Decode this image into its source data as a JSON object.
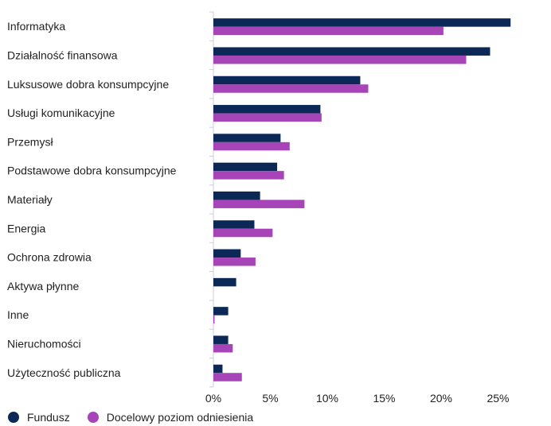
{
  "chart_data": {
    "type": "bar",
    "orientation": "horizontal",
    "categories": [
      "Informatyka",
      "Działalność finansowa",
      "Luksusowe dobra konsumpcyjne",
      "Usługi komunikacyjne",
      "Przemysł",
      "Podstawowe dobra konsumpcyjne",
      "Materiały",
      "Energia",
      "Ochrona zdrowia",
      "Aktywa płynne",
      "Inne",
      "Nieruchomości",
      "Użyteczność publiczna"
    ],
    "series": [
      {
        "name": "Fundusz",
        "color": "#0b2856",
        "values": [
          26.1,
          24.3,
          12.9,
          9.4,
          5.9,
          5.6,
          4.1,
          3.6,
          2.4,
          2.0,
          1.3,
          1.3,
          0.8
        ]
      },
      {
        "name": "Docelowy poziom odniesienia",
        "color": "#a644b8",
        "values": [
          20.2,
          22.2,
          13.6,
          9.5,
          6.7,
          6.2,
          8.0,
          5.2,
          3.7,
          0.0,
          0.1,
          1.7,
          2.5
        ]
      }
    ],
    "x_ticks": [
      "0%",
      "5%",
      "10%",
      "15%",
      "20%",
      "25%"
    ],
    "xlim": [
      0,
      30
    ],
    "legend_position": "bottom-left",
    "grid": false
  }
}
